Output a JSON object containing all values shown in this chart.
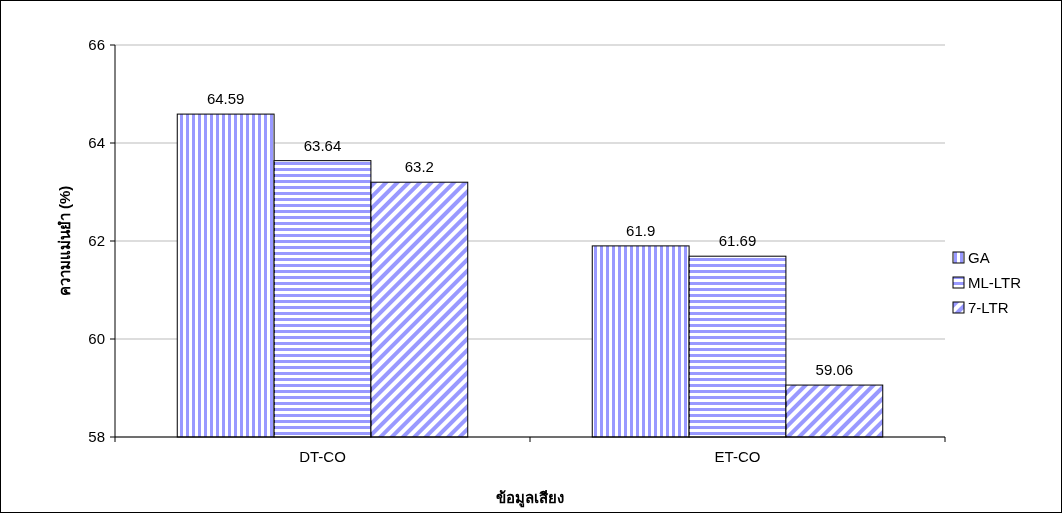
{
  "chart_data": {
    "type": "bar",
    "xlabel": "ข้อมูลเสียง",
    "ylabel": "ความแม่นยำ (%)",
    "categories": [
      "DT-CO",
      "ET-CO"
    ],
    "series": [
      {
        "name": "GA",
        "color": "#9999ff",
        "values": [
          64.59,
          61.9
        ]
      },
      {
        "name": "ML-LTR",
        "color": "#9999ff",
        "values": [
          63.64,
          61.69
        ]
      },
      {
        "name": "7-LTR",
        "color": "#9999ff",
        "values": [
          63.2,
          59.06
        ]
      }
    ],
    "ylim": [
      58,
      66
    ],
    "yticks": [
      58,
      60,
      62,
      64,
      66
    ],
    "grid": "y",
    "legend": "right",
    "data_labels": true
  }
}
